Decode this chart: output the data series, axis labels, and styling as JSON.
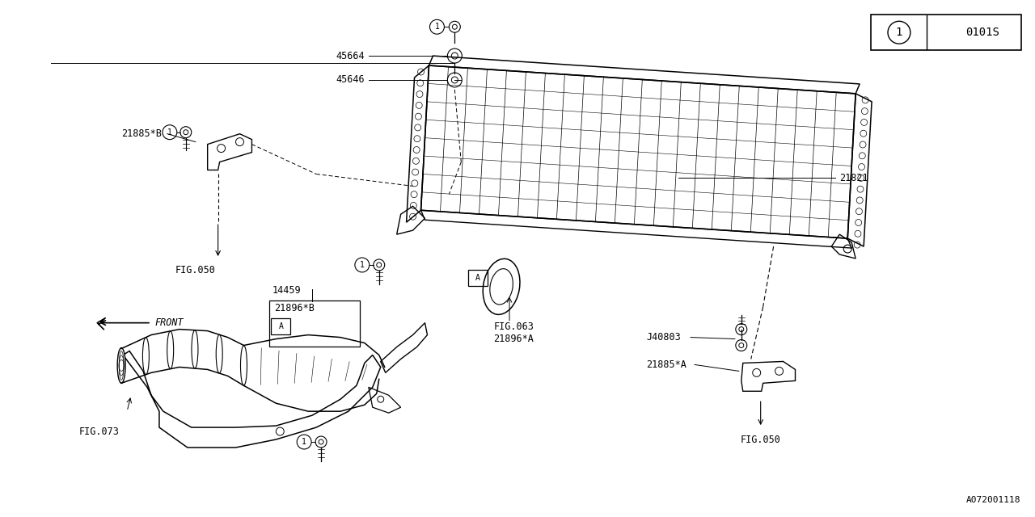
{
  "bg_color": "#ffffff",
  "line_color": "#000000",
  "text_color": "#000000",
  "fig_width": 12.8,
  "fig_height": 6.4,
  "bottom_right_text": "A072001118",
  "legend_circle": "1",
  "legend_code": "0101S"
}
